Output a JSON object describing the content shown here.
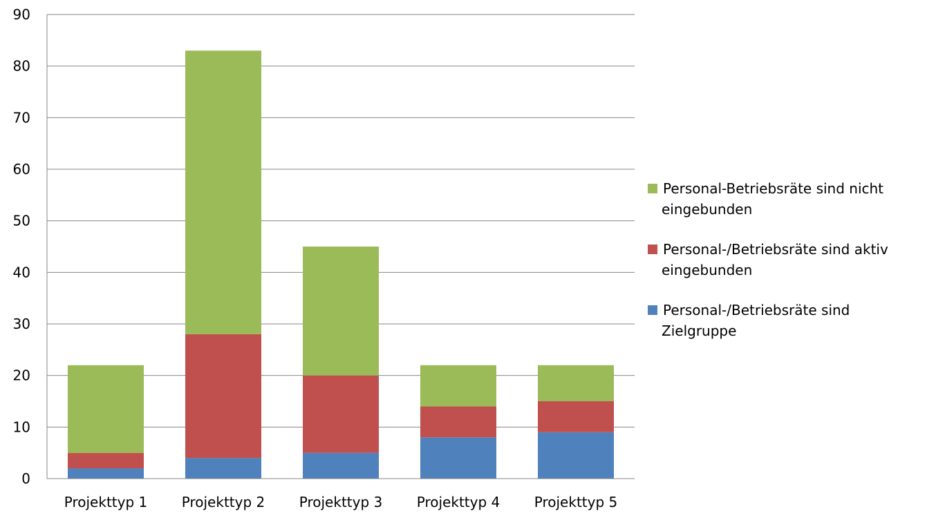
{
  "chart_data": {
    "type": "bar",
    "stacked": true,
    "categories": [
      "Projekttyp 1",
      "Projekttyp 2",
      "Projekttyp 3",
      "Projekttyp 4",
      "Projekttyp 5"
    ],
    "series": [
      {
        "name": "Personal-/Betriebsräte sind Zielgruppe",
        "legend_lines": [
          "Personal-/Betriebsräte sind",
          "Zielgruppe"
        ],
        "color": "#4F81BD",
        "values": [
          2,
          4,
          5,
          8,
          9
        ]
      },
      {
        "name": "Personal-/Betriebsräte sind aktiv eingebunden",
        "legend_lines": [
          "Personal-/Betriebsräte sind aktiv",
          "eingebunden"
        ],
        "color": "#C0504D",
        "values": [
          3,
          24,
          15,
          6,
          6
        ]
      },
      {
        "name": "Personal-Betriebsräte sind nicht eingebunden",
        "legend_lines": [
          "Personal-Betriebsräte sind nicht",
          "eingebunden"
        ],
        "color": "#9BBB59",
        "values": [
          17,
          55,
          25,
          8,
          7
        ]
      }
    ],
    "ylim": [
      0,
      90
    ],
    "yticks": [
      0,
      10,
      20,
      30,
      40,
      50,
      60,
      70,
      80,
      90
    ],
    "grid": true,
    "legend_position": "right",
    "legend_order": [
      2,
      1,
      0
    ],
    "title": "",
    "xlabel": "",
    "ylabel": ""
  }
}
